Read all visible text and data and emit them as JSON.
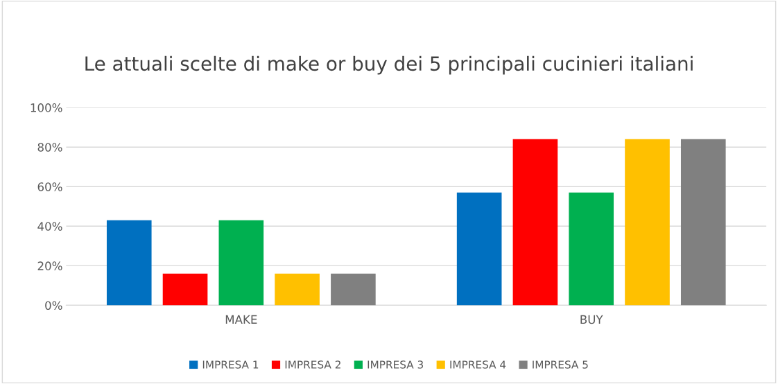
{
  "chart_data": {
    "type": "bar",
    "title": "Le attuali scelte di make or buy dei 5 principali cucinieri italiani",
    "categories": [
      "MAKE",
      "BUY"
    ],
    "series": [
      {
        "name": "IMPRESA 1",
        "color": "#0070c0",
        "values": [
          43,
          57
        ]
      },
      {
        "name": "IMPRESA 2",
        "color": "#ff0000",
        "values": [
          16,
          84
        ]
      },
      {
        "name": "IMPRESA 3",
        "color": "#00b050",
        "values": [
          43,
          57
        ]
      },
      {
        "name": "IMPRESA 4",
        "color": "#ffc000",
        "values": [
          16,
          84
        ]
      },
      {
        "name": "IMPRESA 5",
        "color": "#808080",
        "values": [
          16,
          84
        ]
      }
    ],
    "ylim": [
      0,
      100
    ],
    "yticks": [
      {
        "value": 0,
        "label": "0%"
      },
      {
        "value": 20,
        "label": "20%"
      },
      {
        "value": 40,
        "label": "40%"
      },
      {
        "value": 60,
        "label": "60%"
      },
      {
        "value": 80,
        "label": "80%"
      },
      {
        "value": 100,
        "label": "100%"
      }
    ],
    "grid": "y",
    "legend": "bottom"
  }
}
